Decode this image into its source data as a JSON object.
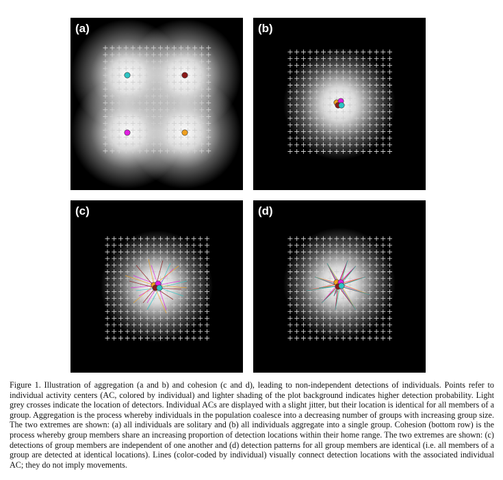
{
  "figure": {
    "panels": [
      {
        "id": "a",
        "label": "(a)"
      },
      {
        "id": "b",
        "label": "(b)"
      },
      {
        "id": "c",
        "label": "(c)"
      },
      {
        "id": "d",
        "label": "(d)"
      }
    ],
    "caption": "Figure 1. Illustration of aggregation (a and b) and cohesion (c and d), leading to non-independent detections of individuals. Points refer to individual activity centers (AC, colored by individual) and lighter shading of the plot background indicates higher detection probability. Light grey crosses indicate the location of detectors. Individual ACs are displayed with a slight jitter, but their location is identical for all members of a group. Aggregation is the process whereby individuals in the population coalesce into a decreasing number of groups with increasing group size. The two extremes are shown: (a) all individuals are solitary and (b) all individuals aggregate into a single group. Cohesion (bottom row) is the process whereby group members share an increasing proportion of detection locations within their home range. The two extremes are shown: (c) detections of group members are independent of one another and (d) detection patterns for all group members are identical (i.e. all members of a group are detected at identical locations). Lines (color-coded by individual) visually connect detection locations with the associated individual AC; they do not imply movements.",
    "individual_colors": [
      "#2ec4c4",
      "#8b1a1a",
      "#e020e0",
      "#f0a020"
    ],
    "detector_color": "#cfcfcf"
  }
}
